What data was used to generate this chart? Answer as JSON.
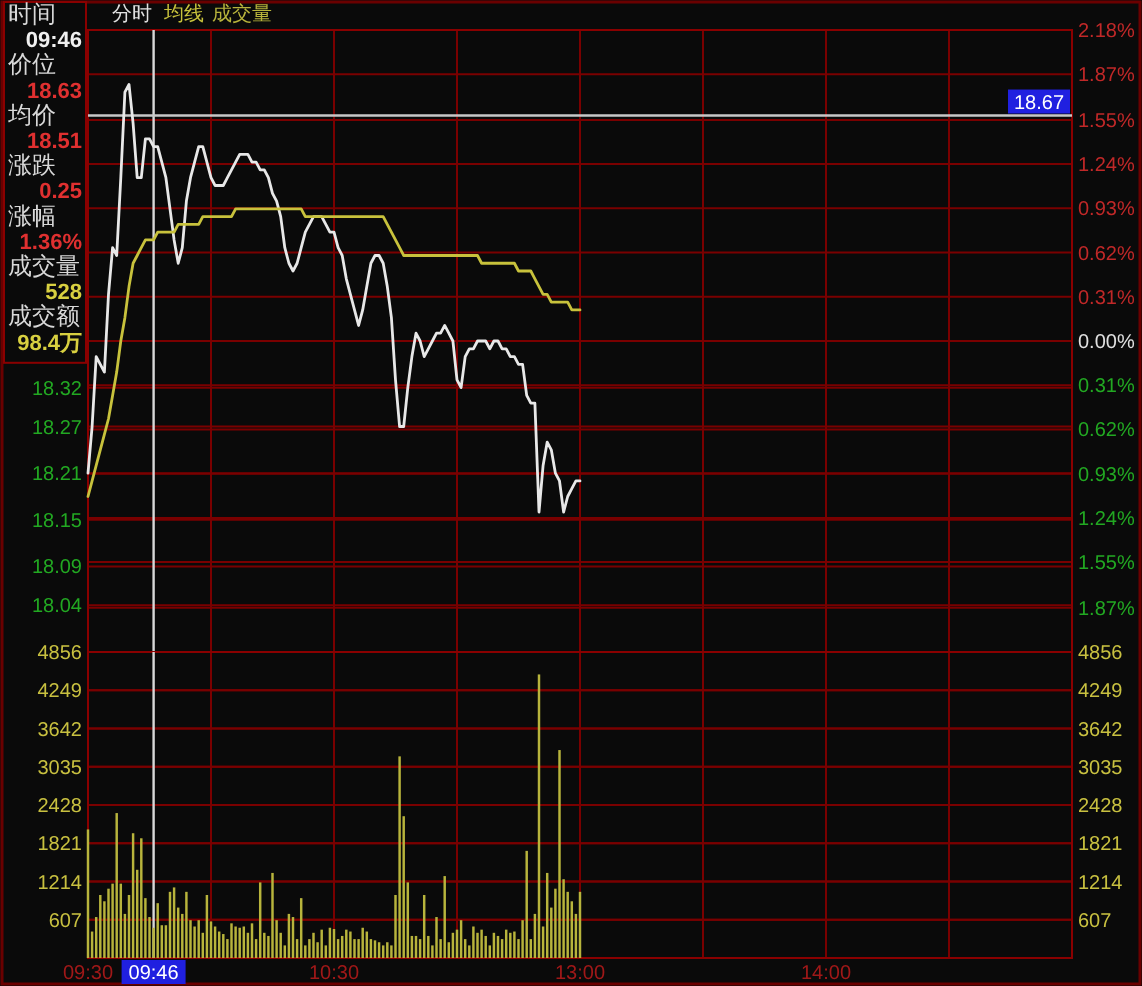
{
  "chart_data": [
    {
      "type": "line",
      "title": "分时",
      "grid": true,
      "tick_labels": "y",
      "categories": [
        "09:30",
        null,
        null,
        null,
        null,
        null,
        null,
        null,
        null,
        null,
        null,
        null,
        null,
        null,
        null,
        null,
        "09:46",
        null,
        null,
        null,
        null,
        null,
        null,
        null,
        null,
        null,
        null,
        null,
        null,
        null,
        null,
        null,
        null,
        null,
        null,
        null,
        null,
        null,
        null,
        null,
        null,
        null,
        null,
        null,
        null,
        null,
        null,
        null,
        null,
        null,
        null,
        null,
        null,
        null,
        null,
        null,
        null,
        null,
        null,
        null,
        "10:30",
        null,
        null,
        null,
        null,
        null,
        null,
        null,
        null,
        null,
        null,
        null,
        null,
        null,
        null,
        null,
        null,
        null,
        null,
        null,
        null,
        null,
        null,
        null,
        null,
        null,
        null,
        null,
        null,
        null,
        null,
        null,
        null,
        null,
        null,
        null,
        null,
        null,
        null,
        null,
        null,
        null,
        null,
        null,
        null,
        null,
        null,
        null,
        null,
        null,
        null,
        null,
        null,
        null,
        null,
        null,
        null,
        null,
        null,
        null,
        "13:00",
        null,
        null,
        null,
        null,
        null,
        null,
        null,
        null,
        null,
        null,
        null,
        null,
        null,
        null,
        null,
        null,
        null,
        null,
        null,
        null,
        null,
        null,
        null,
        null,
        null,
        null,
        null,
        null,
        null,
        null,
        null,
        null,
        null,
        null,
        null,
        null,
        null,
        null,
        null,
        null,
        null,
        null,
        null,
        null,
        null,
        null,
        null,
        null,
        null,
        null,
        null,
        null,
        null,
        null,
        null,
        null,
        null,
        null,
        null,
        "14:00",
        null,
        null,
        null,
        null,
        null,
        null,
        null,
        null,
        null,
        null,
        null,
        null,
        null,
        null,
        null,
        null,
        null,
        null,
        null,
        null,
        null,
        null,
        null,
        null,
        null,
        null,
        null,
        null,
        null,
        null,
        null,
        null,
        null,
        null,
        null,
        null,
        null,
        null,
        null,
        null,
        null,
        null,
        null,
        null,
        null,
        null,
        null,
        null,
        null,
        null,
        null,
        null,
        null,
        null,
        null,
        null,
        null,
        null,
        null,
        null
      ],
      "ylim": [
        17.98,
        18.78
      ],
      "yticks": [
        18.32,
        18.27,
        18.21,
        18.15,
        18.09,
        18.04
      ],
      "y2lim": [
        -2.18,
        2.18
      ],
      "y2ticks": [
        {
          "value": 2.18,
          "label": "2.18%"
        },
        {
          "value": 1.87,
          "label": "1.87%"
        },
        {
          "value": 1.55,
          "label": "1.55%"
        },
        {
          "value": 1.24,
          "label": "1.24%"
        },
        {
          "value": 0.93,
          "label": "0.93%"
        },
        {
          "value": 0.62,
          "label": "0.62%"
        },
        {
          "value": 0.31,
          "label": "0.31%"
        },
        {
          "value": 0,
          "label": "0.00%"
        },
        {
          "value": -0.31,
          "label": "0.31%"
        },
        {
          "value": -0.62,
          "label": "0.62%"
        },
        {
          "value": -0.93,
          "label": "0.93%"
        },
        {
          "value": -1.24,
          "label": "1.24%"
        },
        {
          "value": -1.55,
          "label": "1.55%"
        },
        {
          "value": -1.87,
          "label": "1.87%"
        }
      ],
      "series": [
        {
          "color": "#e8e8e8",
          "values": [
            18.21,
            18.27,
            18.36,
            18.35,
            18.34,
            18.44,
            18.5,
            18.49,
            18.59,
            18.7,
            18.71,
            18.66,
            18.59,
            18.59,
            18.64,
            18.64,
            18.63,
            18.63,
            18.61,
            18.59,
            18.55,
            18.51,
            18.48,
            18.5,
            18.56,
            18.59,
            18.61,
            18.63,
            18.63,
            18.61,
            18.59,
            18.58,
            18.58,
            18.58,
            18.59,
            18.6,
            18.61,
            18.62,
            18.62,
            18.62,
            18.61,
            18.61,
            18.6,
            18.6,
            18.59,
            18.57,
            18.56,
            18.54,
            18.5,
            18.48,
            18.47,
            18.48,
            18.5,
            18.52,
            18.53,
            18.54,
            18.54,
            18.54,
            18.53,
            18.52,
            18.52,
            18.5,
            18.49,
            18.46,
            18.44,
            18.42,
            18.4,
            18.42,
            18.45,
            18.48,
            18.49,
            18.49,
            18.48,
            18.45,
            18.41,
            18.33,
            18.27,
            18.27,
            18.32,
            18.36,
            18.39,
            18.38,
            18.36,
            18.37,
            18.38,
            18.39,
            18.39,
            18.4,
            18.39,
            18.38,
            18.33,
            18.32,
            18.36,
            18.37,
            18.37,
            18.38,
            18.38,
            18.38,
            18.37,
            18.38,
            18.38,
            18.37,
            18.37,
            18.36,
            18.36,
            18.35,
            18.35,
            18.31,
            18.3,
            18.3,
            18.16,
            18.22,
            18.25,
            18.24,
            18.21,
            18.2,
            18.16,
            18.18,
            18.19,
            18.2,
            18.2,
            null,
            null,
            null,
            null,
            null,
            null,
            null,
            null,
            null,
            null,
            null,
            null,
            null,
            null,
            null,
            null,
            null,
            null,
            null,
            null,
            null,
            null,
            null,
            null,
            null,
            null,
            null,
            null,
            null,
            null,
            null,
            null,
            null,
            null,
            null,
            null,
            null,
            null,
            null,
            null,
            null,
            null,
            null,
            null,
            null,
            null,
            null,
            null,
            null,
            null,
            null,
            null,
            null,
            null,
            null,
            null,
            null,
            null,
            null,
            null,
            null,
            null,
            null,
            null,
            null,
            null,
            null,
            null,
            null,
            null,
            null,
            null,
            null,
            null,
            null,
            null,
            null,
            null,
            null,
            null,
            null,
            null,
            null,
            null,
            null,
            null,
            null,
            null,
            null,
            null,
            null,
            null,
            null,
            null,
            null,
            null,
            null,
            null,
            null,
            null,
            null,
            null,
            null,
            null,
            null,
            null,
            null,
            null,
            null,
            null,
            null,
            null,
            null,
            null,
            null,
            null,
            null,
            null,
            null,
            null
          ]
        },
        {
          "name": "均线",
          "color": "#c8c23c",
          "values": [
            18.18,
            18.2,
            18.22,
            18.24,
            18.26,
            18.28,
            18.31,
            18.34,
            18.38,
            18.41,
            18.45,
            18.48,
            18.49,
            18.5,
            18.51,
            18.51,
            18.51,
            18.52,
            18.52,
            18.52,
            18.52,
            18.52,
            18.53,
            18.53,
            18.53,
            18.53,
            18.53,
            18.53,
            18.54,
            18.54,
            18.54,
            18.54,
            18.54,
            18.54,
            18.54,
            18.54,
            18.55,
            18.55,
            18.55,
            18.55,
            18.55,
            18.55,
            18.55,
            18.55,
            18.55,
            18.55,
            18.55,
            18.55,
            18.55,
            18.55,
            18.55,
            18.55,
            18.55,
            18.54,
            18.54,
            18.54,
            18.54,
            18.54,
            18.54,
            18.54,
            18.54,
            18.54,
            18.54,
            18.54,
            18.54,
            18.54,
            18.54,
            18.54,
            18.54,
            18.54,
            18.54,
            18.54,
            18.54,
            18.53,
            18.52,
            18.51,
            18.5,
            18.49,
            18.49,
            18.49,
            18.49,
            18.49,
            18.49,
            18.49,
            18.49,
            18.49,
            18.49,
            18.49,
            18.49,
            18.49,
            18.49,
            18.49,
            18.49,
            18.49,
            18.49,
            18.49,
            18.48,
            18.48,
            18.48,
            18.48,
            18.48,
            18.48,
            18.48,
            18.48,
            18.48,
            18.47,
            18.47,
            18.47,
            18.47,
            18.46,
            18.45,
            18.44,
            18.44,
            18.43,
            18.43,
            18.43,
            18.43,
            18.43,
            18.42,
            18.42,
            18.42,
            null,
            null,
            null,
            null,
            null,
            null,
            null,
            null,
            null,
            null,
            null,
            null,
            null,
            null,
            null,
            null,
            null,
            null,
            null,
            null,
            null,
            null,
            null,
            null,
            null,
            null,
            null,
            null,
            null,
            null,
            null,
            null,
            null,
            null,
            null,
            null,
            null,
            null,
            null,
            null,
            null,
            null,
            null,
            null,
            null,
            null,
            null,
            null,
            null,
            null,
            null,
            null,
            null,
            null,
            null,
            null,
            null,
            null,
            null,
            null,
            null,
            null,
            null,
            null,
            null,
            null,
            null,
            null,
            null,
            null,
            null,
            null,
            null,
            null,
            null,
            null,
            null,
            null,
            null,
            null,
            null,
            null,
            null,
            null,
            null,
            null,
            null,
            null,
            null,
            null,
            null,
            null,
            null,
            null,
            null,
            null,
            null,
            null,
            null,
            null,
            null,
            null,
            null,
            null,
            null,
            null,
            null,
            null,
            null,
            null,
            null,
            null,
            null,
            null,
            null,
            null,
            null,
            null,
            null,
            null
          ]
        }
      ],
      "ref_lines": [
        {
          "axis": "x",
          "value": "09:46",
          "color": "#d8d8d8"
        },
        {
          "axis": "y",
          "value": 18.67,
          "label": "18.67",
          "color": "#c8c8c8"
        }
      ],
      "annotations": [
        "时间",
        "09:46",
        "价位",
        "18.63",
        "均价",
        "18.51",
        "涨跌",
        "0.25",
        "涨幅",
        "1.36%",
        "成交量",
        "528",
        "成交额",
        "98.4万"
      ]
    },
    {
      "type": "bar",
      "grid": true,
      "categories": [
        "09:30",
        null,
        null,
        null,
        null,
        null,
        null,
        null,
        null,
        null,
        null,
        null,
        null,
        null,
        null,
        null,
        "09:46",
        null,
        null,
        null,
        null,
        null,
        null,
        null,
        null,
        null,
        null,
        null,
        null,
        null,
        null,
        null,
        null,
        null,
        null,
        null,
        null,
        null,
        null,
        null,
        null,
        null,
        null,
        null,
        null,
        null,
        null,
        null,
        null,
        null,
        null,
        null,
        null,
        null,
        null,
        null,
        null,
        null,
        null,
        null,
        "10:30",
        null,
        null,
        null,
        null,
        null,
        null,
        null,
        null,
        null,
        null,
        null,
        null,
        null,
        null,
        null,
        null,
        null,
        null,
        null,
        null,
        null,
        null,
        null,
        null,
        null,
        null,
        null,
        null,
        null,
        null,
        null,
        null,
        null,
        null,
        null,
        null,
        null,
        null,
        null,
        null,
        null,
        null,
        null,
        null,
        null,
        null,
        null,
        null,
        null,
        null,
        null,
        null,
        null,
        null,
        null,
        null,
        null,
        null,
        null,
        "13:00",
        null,
        null,
        null,
        null,
        null,
        null,
        null,
        null,
        null,
        null,
        null,
        null,
        null,
        null,
        null,
        null,
        null,
        null,
        null,
        null,
        null,
        null,
        null,
        null,
        null,
        null,
        null,
        null,
        null,
        null,
        null,
        null,
        null,
        null,
        null,
        null,
        null,
        null,
        null,
        null,
        null,
        null,
        null,
        null,
        null,
        null,
        null,
        null,
        null,
        null,
        null,
        null,
        null,
        null,
        null,
        null,
        null,
        null,
        null,
        "14:00",
        null,
        null,
        null,
        null,
        null,
        null,
        null,
        null,
        null,
        null,
        null,
        null,
        null,
        null,
        null,
        null,
        null,
        null,
        null,
        null,
        null,
        null,
        null,
        null,
        null,
        null,
        null,
        null,
        null,
        null,
        null,
        null,
        null,
        null,
        null,
        null,
        null,
        null,
        null,
        null,
        null,
        null,
        null,
        null,
        null,
        null,
        null,
        null,
        null,
        null,
        null,
        null,
        null,
        null,
        null,
        null,
        null,
        null,
        null,
        null
      ],
      "ylim": [
        0,
        4856
      ],
      "yticks": [
        607,
        1214,
        1821,
        2428,
        3035,
        3642,
        4249,
        4856
      ],
      "y2lim": [
        0,
        4856
      ],
      "y2ticks": [
        607,
        1214,
        1821,
        2428,
        3035,
        3642,
        4249,
        4856
      ],
      "series": [
        {
          "name": "成交量",
          "color": "#b8b43c",
          "values": [
            2040,
            420,
            650,
            1000,
            900,
            1100,
            1180,
            2300,
            1180,
            700,
            1000,
            1980,
            1400,
            1900,
            950,
            650,
            480,
            870,
            520,
            520,
            1050,
            1120,
            800,
            700,
            1050,
            600,
            500,
            600,
            400,
            1000,
            580,
            500,
            420,
            380,
            300,
            550,
            500,
            480,
            500,
            400,
            550,
            300,
            1200,
            400,
            350,
            1350,
            600,
            400,
            200,
            700,
            650,
            300,
            950,
            200,
            300,
            400,
            250,
            450,
            200,
            480,
            460,
            300,
            350,
            450,
            420,
            300,
            300,
            480,
            420,
            300,
            280,
            250,
            200,
            250,
            200,
            1000,
            3200,
            2250,
            1200,
            350,
            350,
            300,
            1000,
            350,
            200,
            650,
            300,
            1300,
            250,
            400,
            450,
            600,
            300,
            200,
            500,
            400,
            450,
            350,
            200,
            400,
            350,
            300,
            450,
            400,
            420,
            300,
            600,
            1700,
            300,
            700,
            4500,
            500,
            1350,
            800,
            1100,
            3300,
            1250,
            1050,
            900,
            700,
            1050,
            null,
            null,
            null,
            null,
            null,
            null,
            null,
            null,
            null,
            null,
            null,
            null,
            null,
            null,
            null,
            null,
            null,
            null,
            null,
            null,
            null,
            null,
            null,
            null,
            null,
            null,
            null,
            null,
            null,
            null,
            null,
            null,
            null,
            null,
            null,
            null,
            null,
            null,
            null,
            null,
            null,
            null,
            null,
            null,
            null,
            null,
            null,
            null,
            null,
            null,
            null,
            null,
            null,
            null,
            null,
            null,
            null,
            null,
            null,
            null,
            null,
            null,
            null,
            null,
            null,
            null,
            null,
            null,
            null,
            null,
            null,
            null,
            null,
            null,
            null,
            null,
            null,
            null,
            null,
            null,
            null,
            null,
            null,
            null,
            null,
            null,
            null,
            null,
            null,
            null,
            null,
            null,
            null,
            null,
            null,
            null,
            null,
            null,
            null,
            null,
            null,
            null,
            null,
            null,
            null,
            null,
            null,
            null,
            null,
            null,
            null,
            null,
            null,
            null,
            null,
            null,
            null,
            null,
            null,
            null
          ]
        }
      ],
      "ref_lines": [
        {
          "axis": "x",
          "value": "09:46",
          "color": "#d8d8d8"
        }
      ]
    }
  ]
}
